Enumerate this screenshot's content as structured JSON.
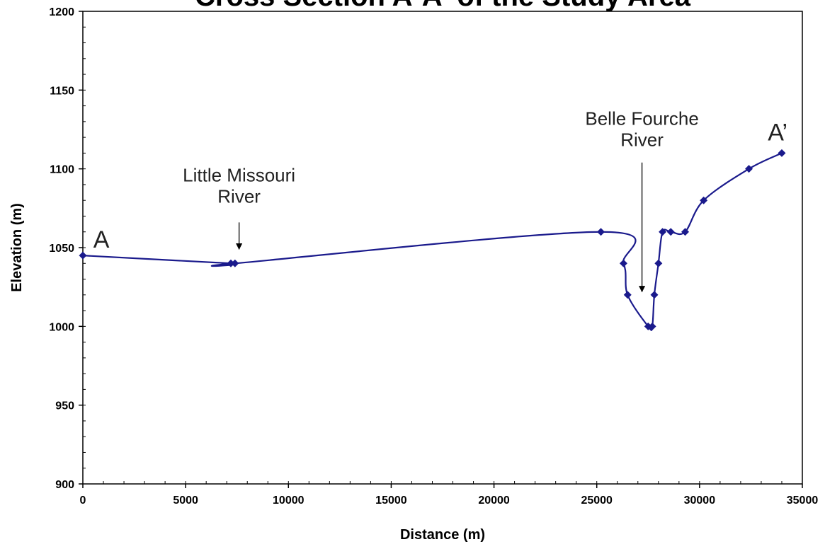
{
  "chart_data": {
    "type": "line",
    "title": "Cross Section A-A' of the Study Area",
    "xlabel": "Distance (m)",
    "ylabel": "Elevation (m)",
    "xlim": [
      0,
      35000
    ],
    "ylim": [
      900,
      1200
    ],
    "x_ticks": [
      0,
      5000,
      10000,
      15000,
      20000,
      25000,
      30000,
      35000
    ],
    "y_ticks": [
      900,
      950,
      1000,
      1050,
      1100,
      1150,
      1200
    ],
    "x_tick_labels": [
      "0",
      "5000",
      "10000",
      "15000",
      "20000",
      "25000",
      "30000",
      "35000"
    ],
    "y_tick_labels": [
      "900",
      "950",
      "1000",
      "1050",
      "1100",
      "1150",
      "1200"
    ],
    "grid": false,
    "legend": "none",
    "line_style": "smoothed",
    "series": [
      {
        "color": "#1a1a8c",
        "marker": "diamond",
        "x": [
          0,
          7200,
          7400,
          25200,
          26300,
          26500,
          27500,
          27700,
          27800,
          28000,
          28200,
          28600,
          29300,
          30200,
          32400,
          34000
        ],
        "y": [
          1045,
          1040,
          1040,
          1060,
          1040,
          1020,
          1000,
          1000,
          1020,
          1040,
          1060,
          1060,
          1060,
          1080,
          1100,
          1110
        ]
      }
    ],
    "annotations": [
      {
        "id": "point-a",
        "text": "A",
        "x": 900,
        "y": 1050
      },
      {
        "id": "point-a-prime",
        "text": "A’",
        "x": 33800,
        "y": 1118
      },
      {
        "id": "little-missouri",
        "lines": [
          "Little Missouri",
          "River"
        ],
        "x": 7600,
        "y": 1092,
        "arrow_from": [
          7600,
          1066
        ],
        "arrow_to": [
          7600,
          1049
        ]
      },
      {
        "id": "belle-fourche",
        "lines": [
          "Belle Fourche",
          "River"
        ],
        "x": 27200,
        "y": 1128,
        "arrow_from": [
          27200,
          1104
        ],
        "arrow_to": [
          27200,
          1022
        ]
      }
    ]
  }
}
